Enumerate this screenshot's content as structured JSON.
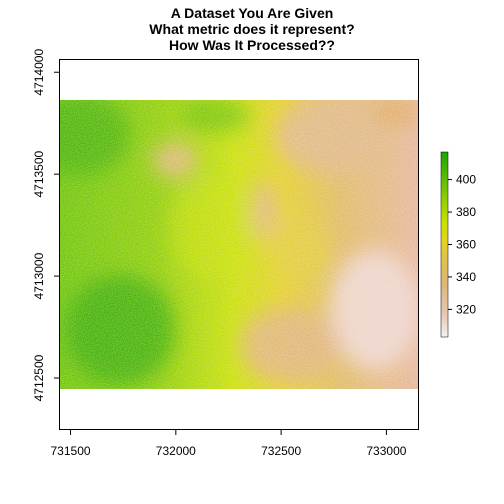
{
  "title_lines": [
    "A Dataset You Are Given",
    "What metric does it represent?",
    "How Was It Processed??"
  ],
  "map": {
    "x_ticks": [
      "731500",
      "732000",
      "732500",
      "733000"
    ],
    "y_ticks": [
      "4712500",
      "4713000",
      "4713500",
      "4714000"
    ],
    "x_values": [
      731500,
      732000,
      732500,
      733000
    ],
    "y_values": [
      4712500,
      4713000,
      4713500,
      4714000
    ],
    "x_range": [
      731450,
      733150
    ],
    "y_range": [
      4712250,
      4714060
    ],
    "raster_extent": {
      "x": [
        731450,
        733150
      ],
      "y": [
        4712530,
        4713840
      ]
    }
  },
  "legend": {
    "ticks": [
      "320",
      "340",
      "360",
      "380",
      "400"
    ],
    "tick_values": [
      320,
      340,
      360,
      380,
      400
    ],
    "range": [
      303,
      417
    ],
    "colors": [
      "#f2f2f2",
      "#e8c7b5",
      "#dfb77a",
      "#e3c04a",
      "#e5d31e",
      "#c8df00",
      "#8fcd00",
      "#52b800",
      "#1ea400"
    ]
  }
}
